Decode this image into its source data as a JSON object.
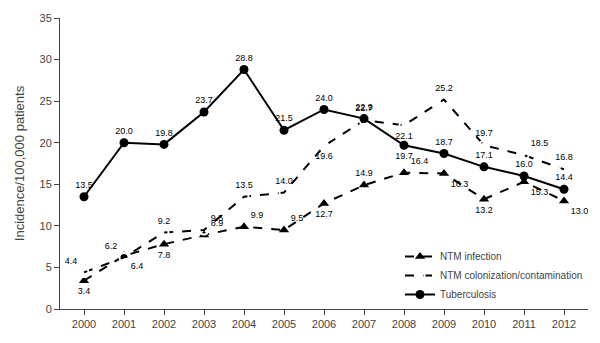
{
  "chart_data": {
    "type": "line",
    "x": [
      2000,
      2001,
      2002,
      2003,
      2004,
      2005,
      2006,
      2007,
      2008,
      2009,
      2010,
      2011,
      2012
    ],
    "ylabel": "Incidence/100,000 patients",
    "xlim": [
      1999.4,
      2012.6
    ],
    "xticks": [
      2000,
      2001,
      2002,
      2003,
      2004,
      2005,
      2006,
      2007,
      2008,
      2009,
      2010,
      2011,
      2012
    ],
    "ylim": [
      0,
      35
    ],
    "yticks": [
      0,
      5,
      10,
      15,
      20,
      25,
      30,
      35
    ],
    "grid": false,
    "legend": "lower right",
    "data_labels": true,
    "series": [
      {
        "name": "NTM infection",
        "color": "#000000",
        "line_style": "dashed",
        "marker": "triangle-up",
        "values": [
          3.4,
          6.4,
          7.8,
          8.9,
          9.9,
          9.5,
          12.7,
          14.9,
          16.4,
          16.3,
          13.2,
          15.3,
          13.0
        ],
        "value_labels": [
          "3.4",
          "6.4",
          "7.8",
          "8.9",
          "9.9",
          "9.5",
          "12.7",
          "14.9",
          "16.4",
          "16.3",
          "13.2",
          "15.3",
          "13.0"
        ]
      },
      {
        "name": "NTM colonization/contamination",
        "color": "#000000",
        "line_style": "dashed",
        "marker": "circle-open",
        "values": [
          4.4,
          6.2,
          9.2,
          9.5,
          13.5,
          14.0,
          19.6,
          22.7,
          22.1,
          25.2,
          19.7,
          18.5,
          16.8
        ],
        "value_labels": [
          "4.4",
          "6.2",
          "9.2",
          "9.5",
          "13.5",
          "14.0",
          "19.6",
          "22.7",
          "22.1",
          "25.2",
          "19.7",
          "18.5",
          "16.8"
        ]
      },
      {
        "name": "Tuberculosis",
        "color": "#000000",
        "line_style": "solid",
        "marker": "circle",
        "values": [
          13.5,
          20.0,
          19.8,
          23.7,
          28.8,
          21.5,
          24.0,
          22.9,
          19.7,
          18.7,
          17.1,
          16.0,
          14.4
        ],
        "value_labels": [
          "13.5",
          "20.0",
          "19.8",
          "23.7",
          "28.8",
          "21.5",
          "24.0",
          "22.9",
          "19.7",
          "18.7",
          "17.1",
          "16.0",
          "14.4"
        ]
      }
    ]
  }
}
